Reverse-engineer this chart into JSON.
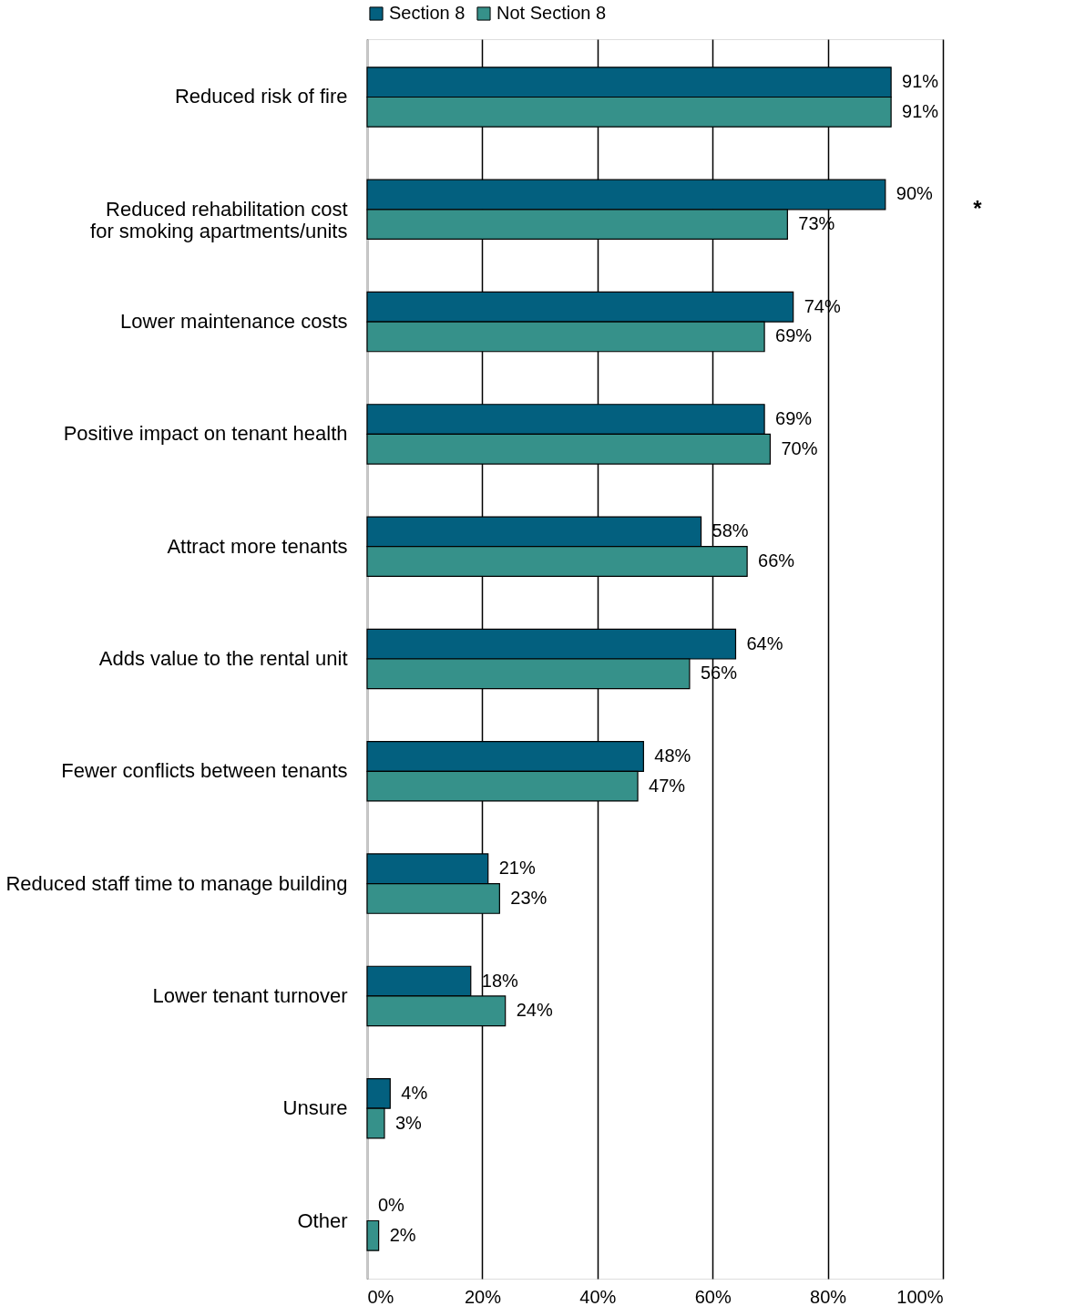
{
  "chart_data": {
    "type": "bar",
    "orientation": "horizontal",
    "categories": [
      "Reduced risk of fire",
      "Reduced rehabilitation cost for smoking apartments/units",
      "Lower maintenance costs",
      "Positive impact on tenant health",
      "Attract more tenants",
      "Adds value to the rental unit",
      "Fewer conflicts between tenants",
      "Reduced staff time to manage building",
      "Lower tenant turnover",
      "Unsure",
      "Other"
    ],
    "series": [
      {
        "name": "Section 8",
        "color": "#03607f",
        "values": [
          91,
          90,
          74,
          69,
          58,
          64,
          48,
          21,
          18,
          4,
          0
        ],
        "value_labels": [
          "91%",
          "90%",
          "74%",
          "69%",
          "58%",
          "64%",
          "48%",
          "21%",
          "18%",
          "4%",
          "0%"
        ]
      },
      {
        "name": "Not Section 8",
        "color": "#36918a",
        "values": [
          91,
          73,
          69,
          70,
          66,
          56,
          47,
          23,
          24,
          3,
          2
        ],
        "value_labels": [
          "91%",
          "73%",
          "69%",
          "70%",
          "66%",
          "56%",
          "47%",
          "23%",
          "24%",
          "3%",
          "2%"
        ]
      }
    ],
    "xlim": [
      0,
      100
    ],
    "xticks": [
      {
        "value": 0,
        "label": "0%"
      },
      {
        "value": 20,
        "label": "20%"
      },
      {
        "value": 40,
        "label": "40%"
      },
      {
        "value": 60,
        "label": "60%"
      },
      {
        "value": 80,
        "label": "80%"
      },
      {
        "value": 100,
        "label": "100%"
      }
    ],
    "grid": "x",
    "legend": "top",
    "annotations": [
      "*"
    ]
  }
}
